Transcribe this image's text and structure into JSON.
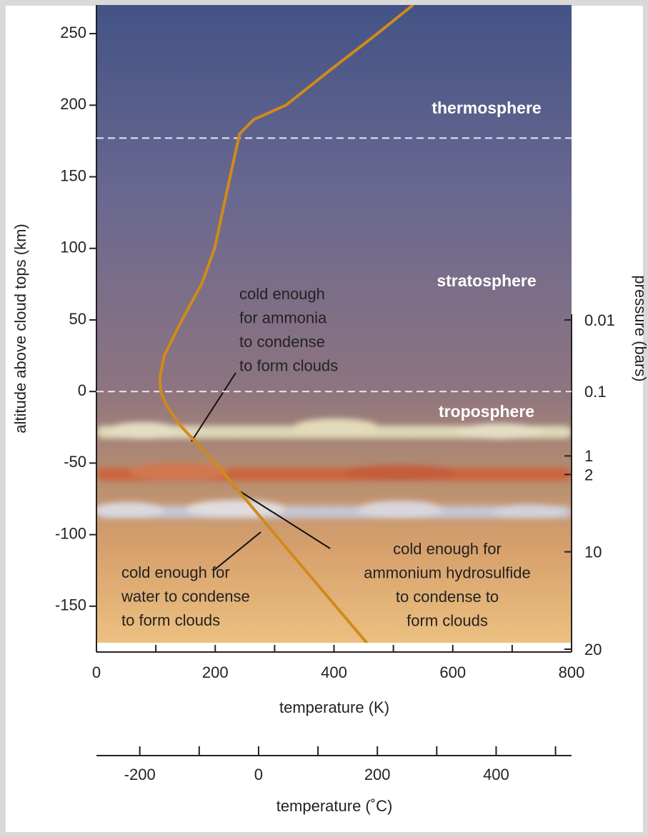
{
  "chart_data": {
    "type": "line",
    "x_label": "temperature (K)",
    "y_label": "altitude above cloud tops (km)",
    "y2_label": "pressure (bars)",
    "x2_label": "temperature (˚C)",
    "xlim": [
      0,
      800
    ],
    "xticks": [
      0,
      200,
      400,
      600,
      800
    ],
    "xminor": [
      100,
      300,
      500,
      700
    ],
    "ylim": [
      -182,
      270
    ],
    "yticks": [
      -150,
      -100,
      -50,
      0,
      50,
      100,
      150,
      200,
      250
    ],
    "y2ticks": [
      0.01,
      0.1,
      1,
      2,
      10,
      20
    ],
    "y2_altitudes": [
      50,
      0,
      -45,
      -58,
      -112,
      -180
    ],
    "x2lim": [
      -273,
      527
    ],
    "x2ticks": [
      -200,
      0,
      200,
      400
    ],
    "x2minor": [
      -100,
      100,
      300,
      500
    ],
    "series": [
      {
        "color": "#d08a1a",
        "x": [
          533,
          473,
          395,
          319,
          265,
          241,
          225,
          199,
          177,
          144,
          114,
          107,
          108,
          118,
          144,
          200,
          301,
          403,
          460
        ],
        "values": [
          270,
          250,
          225,
          200,
          190,
          180,
          150,
          100,
          75,
          50,
          25,
          10,
          0,
          -10,
          -25,
          -50,
          -100,
          -150,
          -178
        ]
      }
    ],
    "boundaries": [
      177,
      0
    ],
    "layers": [
      "thermosphere",
      "stratosphere",
      "troposphere"
    ],
    "annotations": [
      [
        "cold enough",
        "for ammonia",
        "to condense",
        "to form clouds"
      ],
      [
        "cold enough for",
        "ammonium hydrosulfide",
        "to condense to",
        "form clouds"
      ],
      [
        "cold enough for",
        "water to condense",
        "to form clouds"
      ]
    ]
  }
}
